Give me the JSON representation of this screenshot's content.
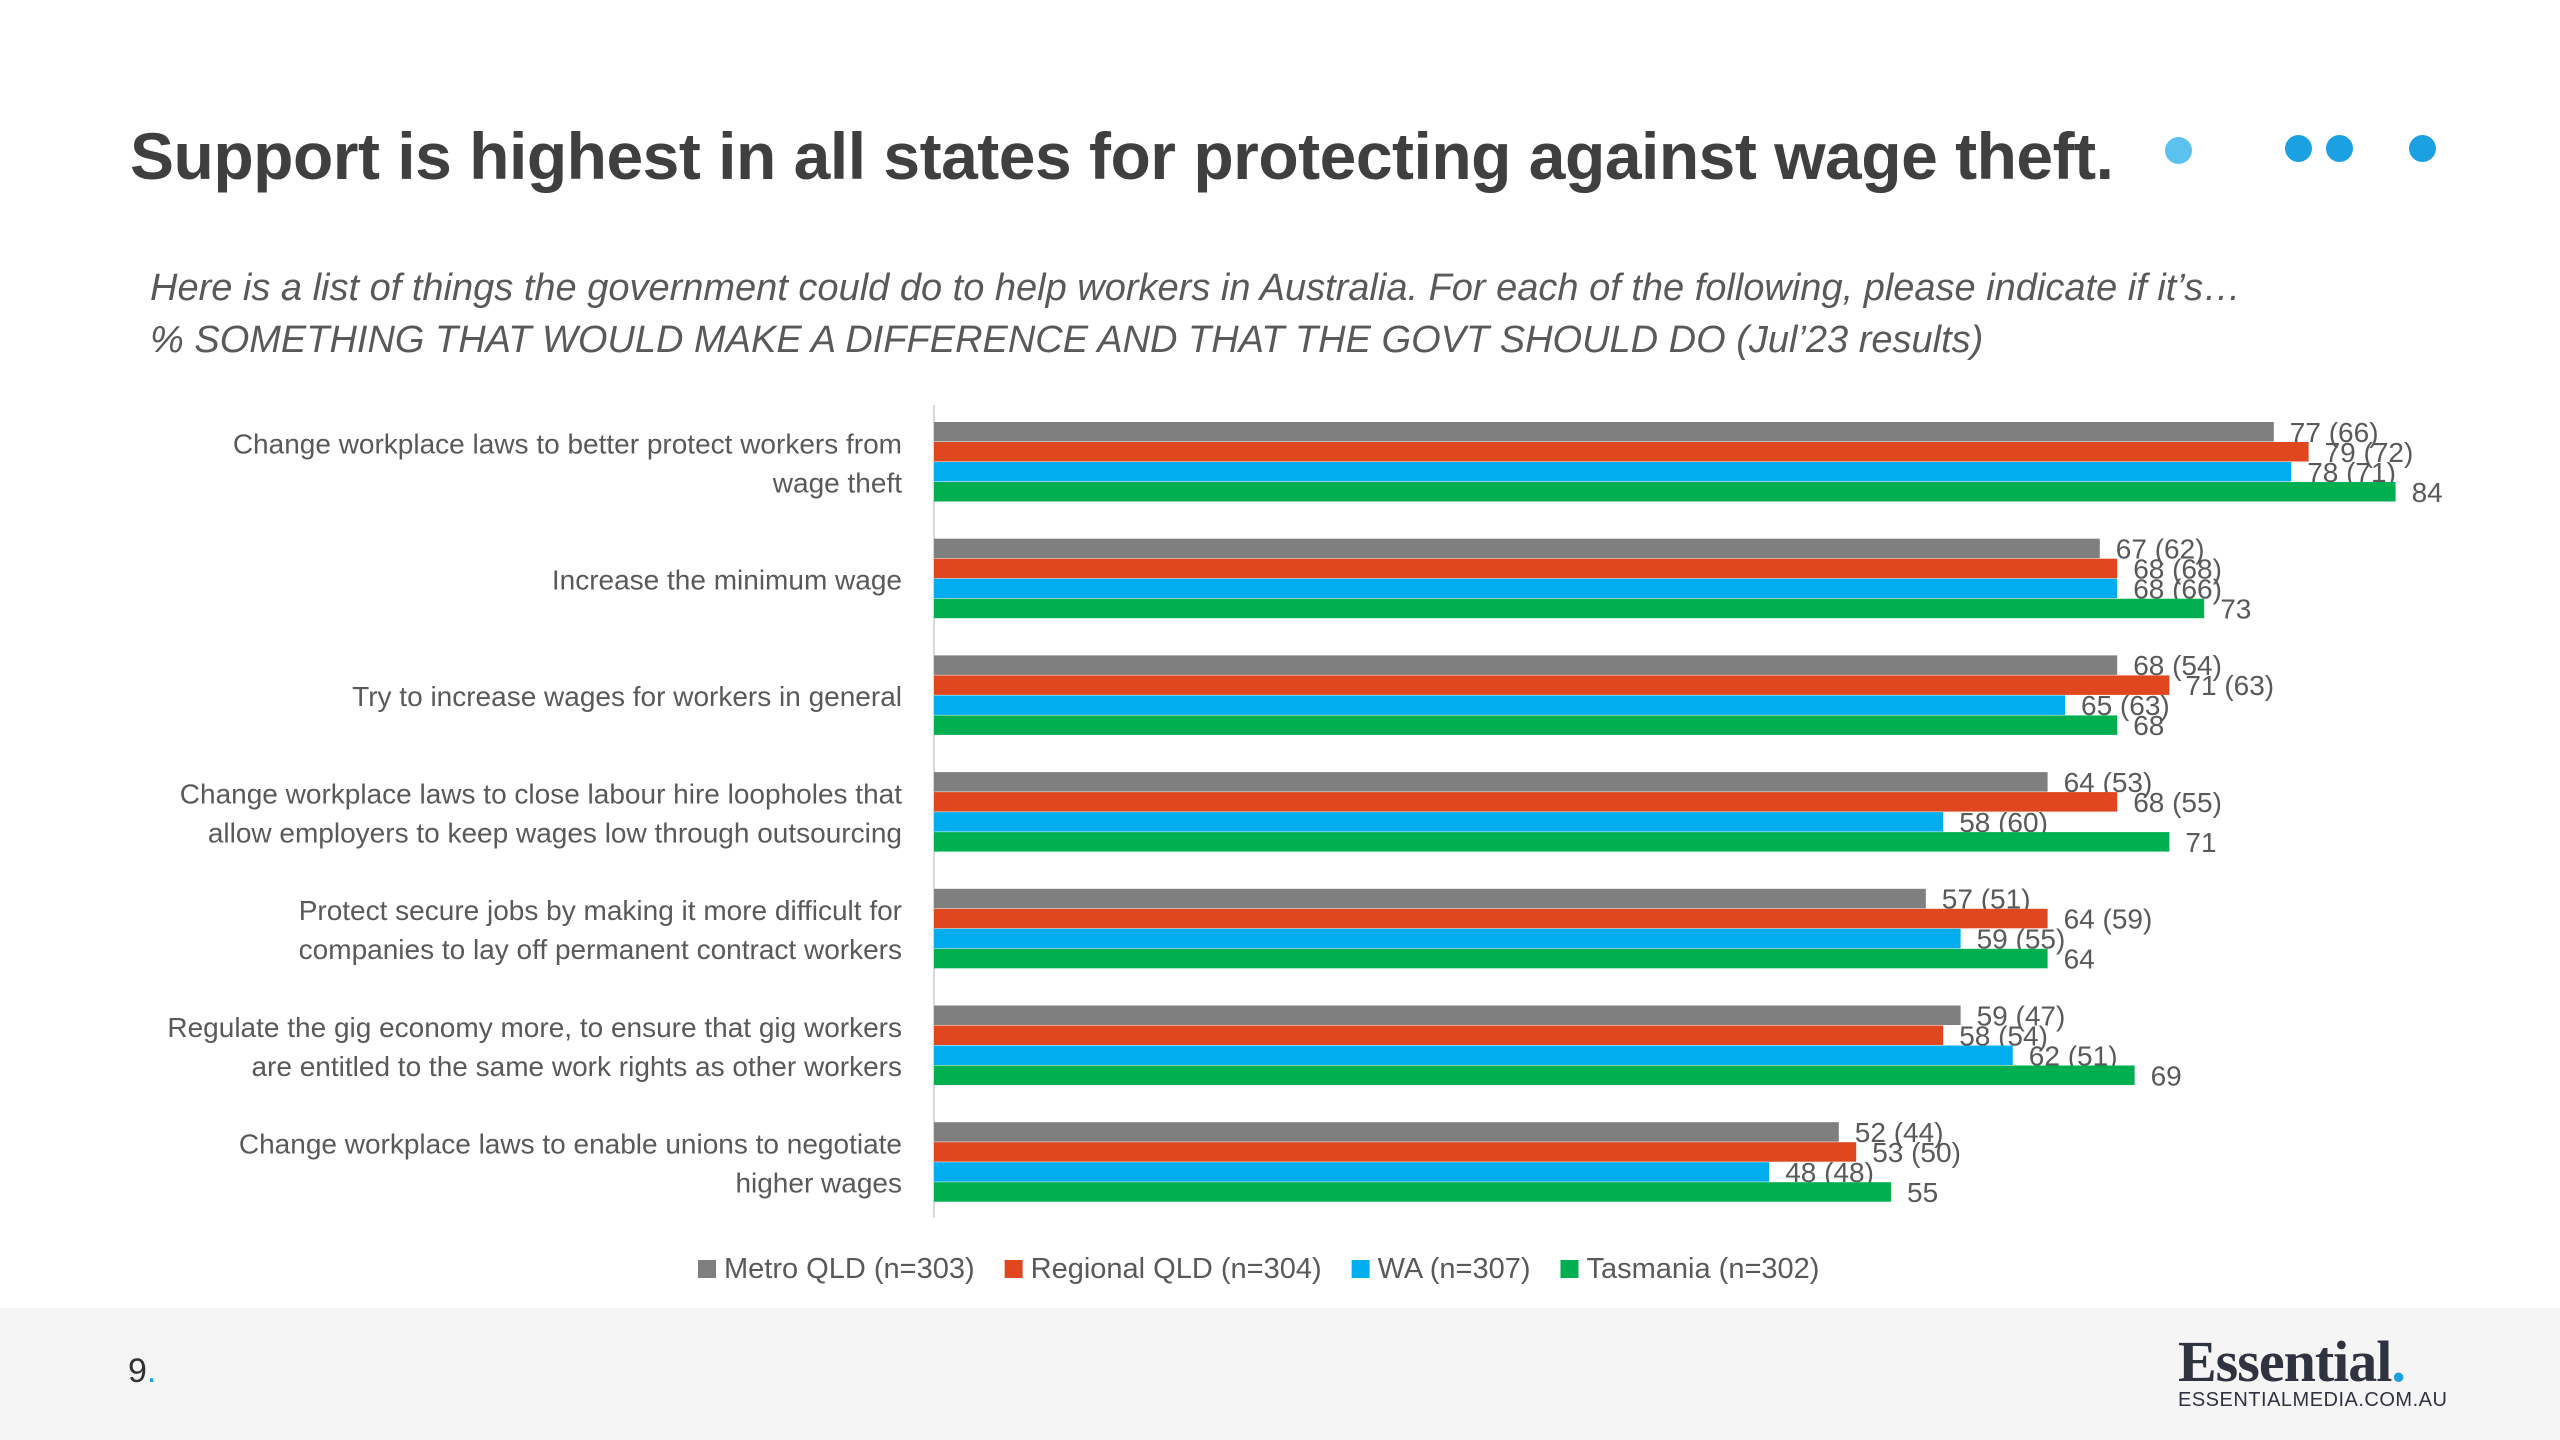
{
  "slide": {
    "title": "Support is highest in all states for protecting against wage theft.",
    "subtitle_line1": "Here is a list of things the government could do to help workers in Australia. For each of the following, please indicate if it’s…",
    "subtitle_line2": "% SOMETHING THAT WOULD MAKE A DIFFERENCE AND THAT THE GOVT SHOULD DO (Jul’23 results)",
    "page_number": "9",
    "page_number_suffix": ".",
    "brand_name": "Essential",
    "brand_dot": ".",
    "brand_url": "ESSENTIALMEDIA.COM.AU",
    "decor_dot_colors": [
      "#5bc2f0",
      "#1ba1e2",
      "#1ba1e2",
      "#1ba1e2"
    ]
  },
  "chart_data": {
    "type": "bar",
    "orientation": "horizontal",
    "categories": [
      [
        "Change workplace laws to better protect workers from",
        "wage theft"
      ],
      [
        "Increase the minimum wage"
      ],
      [
        "Try to increase wages for workers in general"
      ],
      [
        "Change workplace laws to close labour hire loopholes that",
        "allow employers to keep wages low through outsourcing"
      ],
      [
        "Protect secure jobs by making it more difficult for",
        "companies to lay off permanent contract workers"
      ],
      [
        "Regulate the gig economy more, to ensure that gig workers",
        "are entitled to the same work rights as other workers"
      ],
      [
        "Change workplace laws to enable unions to negotiate",
        "higher wages"
      ]
    ],
    "series": [
      {
        "name": "Metro QLD (n=303)",
        "color": "#7f7f7f",
        "values": [
          77,
          67,
          68,
          64,
          57,
          59,
          52
        ],
        "labels": [
          "77 (66)",
          "67 (62)",
          "68 (54)",
          "64 (53)",
          "57 (51)",
          "59 (47)",
          "52 (44)"
        ]
      },
      {
        "name": "Regional QLD (n=304)",
        "color": "#e0471f",
        "values": [
          79,
          68,
          71,
          68,
          64,
          58,
          53
        ],
        "labels": [
          "79 (72)",
          "68 (68)",
          "71 (63)",
          "68 (55)",
          "64 (59)",
          "58 (54)",
          "53 (50)"
        ]
      },
      {
        "name": "WA (n=307)",
        "color": "#00aeef",
        "values": [
          78,
          68,
          65,
          58,
          59,
          62,
          48
        ],
        "labels": [
          "78 (71)",
          "68 (66)",
          "65 (63)",
          "58 (60)",
          "59 (55)",
          "62 (51)",
          "48 (48)"
        ]
      },
      {
        "name": "Tasmania (n=302)",
        "color": "#00b050",
        "values": [
          84,
          73,
          68,
          71,
          64,
          69,
          55
        ],
        "labels": [
          "84",
          "73",
          "68",
          "71",
          "64",
          "69",
          "55"
        ]
      }
    ],
    "xlim": [
      0,
      100
    ],
    "grid": false,
    "legend_position": "bottom"
  }
}
